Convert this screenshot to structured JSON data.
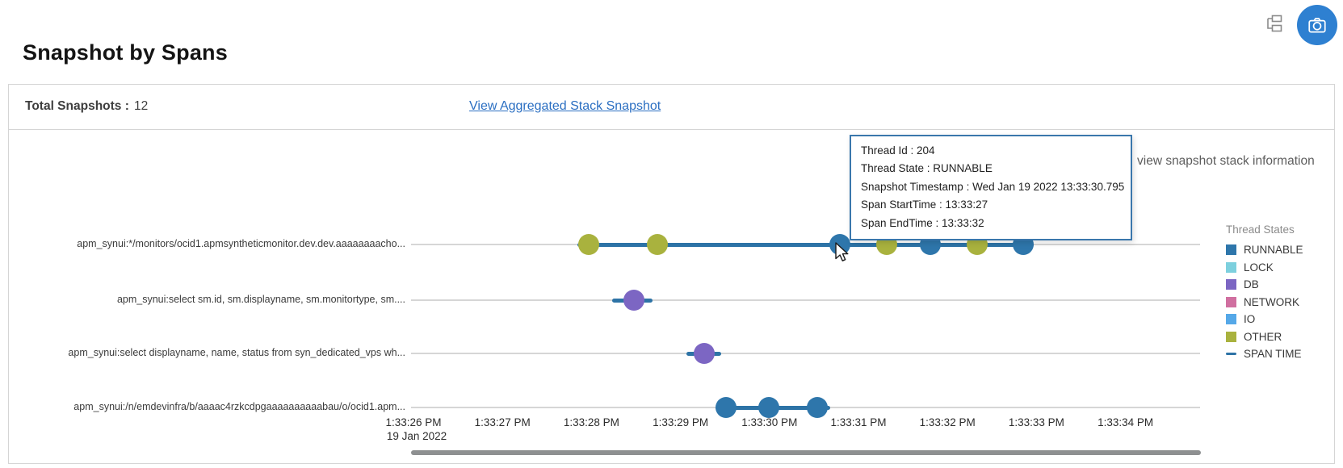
{
  "header": {
    "title": "Snapshot by Spans"
  },
  "toolbar": {
    "tree_icon": "span-tree-toggle",
    "camera_icon": "snapshot-camera"
  },
  "summary": {
    "label": "Total Snapshots :",
    "value": "12",
    "link": "View Aggregated Stack Snapshot"
  },
  "tooltip": {
    "lines": [
      "Thread Id : 204",
      "Thread State : RUNNABLE",
      "Snapshot Timestamp : Wed Jan 19 2022 13:33:30.795",
      "Span StartTime : 13:33:27",
      "Span EndTime : 13:33:32"
    ]
  },
  "note": "view snapshot stack information",
  "legend": {
    "title": "Thread States",
    "items": [
      {
        "label": "RUNNABLE",
        "color": "#2e76ab",
        "type": "square"
      },
      {
        "label": "LOCK",
        "color": "#7dd0de",
        "type": "square"
      },
      {
        "label": "DB",
        "color": "#7c66c3",
        "type": "square"
      },
      {
        "label": "NETWORK",
        "color": "#d06fa0",
        "type": "square"
      },
      {
        "label": "IO",
        "color": "#55a8e8",
        "type": "square"
      },
      {
        "label": "OTHER",
        "color": "#a9b23e",
        "type": "square"
      },
      {
        "label": "SPAN TIME",
        "color": "#2d73a6",
        "type": "line"
      }
    ]
  },
  "chart_data": {
    "type": "scatter",
    "title": "Snapshot by Spans timeline",
    "x_axis": {
      "ticks": [
        "1:33:26 PM",
        "1:33:27 PM",
        "1:33:28 PM",
        "1:33:29 PM",
        "1:33:30 PM",
        "1:33:31 PM",
        "1:33:32 PM",
        "1:33:33 PM",
        "1:33:34 PM"
      ],
      "date_label": "19 Jan 2022",
      "tick_interval_seconds": 1
    },
    "state_colors": {
      "RUNNABLE": "#2e76ab",
      "LOCK": "#7dd0de",
      "DB": "#7c66c3",
      "NETWORK": "#d06fa0",
      "IO": "#55a8e8",
      "OTHER": "#a9b23e",
      "SPAN_TIME": "#2d73a6"
    },
    "rows": [
      {
        "label": "apm_synui:*/monitors/ocid1.apmsyntheticmonitor.dev.dev.aaaaaaaacho...",
        "span_seconds": {
          "start": 1.84,
          "end": 6.97
        },
        "snapshots": [
          {
            "t": 1.97,
            "state": "OTHER"
          },
          {
            "t": 2.74,
            "state": "OTHER"
          },
          {
            "t": 4.795,
            "state": "RUNNABLE",
            "hovered": true
          },
          {
            "t": 5.32,
            "state": "OTHER"
          },
          {
            "t": 5.81,
            "state": "RUNNABLE"
          },
          {
            "t": 6.33,
            "state": "OTHER"
          },
          {
            "t": 6.85,
            "state": "RUNNABLE"
          }
        ]
      },
      {
        "label": "apm_synui:select sm.id, sm.displayname, sm.monitortype, sm....",
        "span_seconds": {
          "start": 2.23,
          "end": 2.69
        },
        "snapshots": [
          {
            "t": 2.48,
            "state": "DB"
          }
        ]
      },
      {
        "label": "apm_synui:select displayname, name, status from syn_dedicated_vps wh...",
        "span_seconds": {
          "start": 3.07,
          "end": 3.46
        },
        "snapshots": [
          {
            "t": 3.27,
            "state": "DB"
          }
        ]
      },
      {
        "label": "apm_synui:/n/emdevinfra/b/aaaac4rzkcdpgaaaaaaaaaabau/o/ocid1.apm...",
        "span_seconds": {
          "start": 3.39,
          "end": 4.68
        },
        "snapshots": [
          {
            "t": 3.51,
            "state": "RUNNABLE"
          },
          {
            "t": 3.99,
            "state": "RUNNABLE"
          },
          {
            "t": 4.54,
            "state": "RUNNABLE"
          }
        ]
      }
    ]
  }
}
